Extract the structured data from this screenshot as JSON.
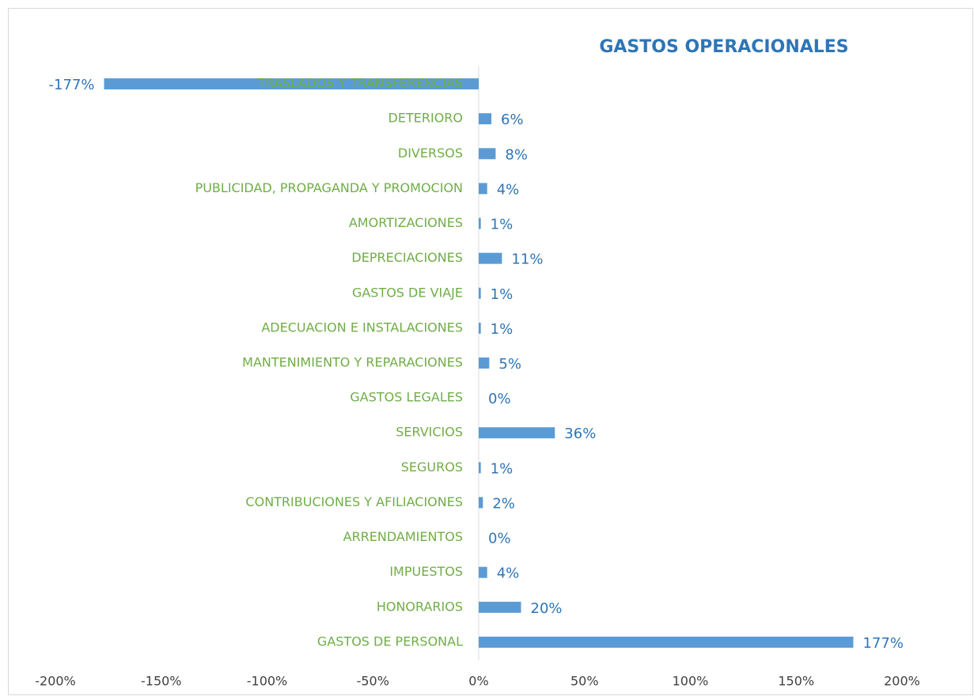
{
  "chart_data": {
    "type": "barh",
    "title": "GASTOS OPERACIONALES",
    "categories": [
      "TRASLADOS Y TRANSFERENCIAS",
      "DETERIORO",
      "DIVERSOS",
      "PUBLICIDAD, PROPAGANDA Y PROMOCION",
      "AMORTIZACIONES",
      "DEPRECIACIONES",
      "GASTOS DE VIAJE",
      "ADECUACION E INSTALACIONES",
      "MANTENIMIENTO Y REPARACIONES",
      "GASTOS LEGALES",
      "SERVICIOS",
      "SEGUROS",
      "CONTRIBUCIONES Y AFILIACIONES",
      "ARRENDAMIENTOS",
      "IMPUESTOS",
      "HONORARIOS",
      "GASTOS DE PERSONAL"
    ],
    "values": [
      -177,
      6,
      8,
      4,
      1,
      11,
      1,
      1,
      5,
      0,
      36,
      1,
      2,
      0,
      4,
      20,
      177
    ],
    "value_labels": [
      "-177%",
      "6%",
      "8%",
      "4%",
      "1%",
      "11%",
      "1%",
      "1%",
      "5%",
      "0%",
      "36%",
      "1%",
      "2%",
      "0%",
      "4%",
      "20%",
      "177%"
    ],
    "color": "#5b9bd5",
    "xlim": [
      -200,
      200
    ],
    "xticks": [
      {
        "value": -200,
        "label": "-200%"
      },
      {
        "value": -150,
        "label": "-150%"
      },
      {
        "value": -100,
        "label": "-100%"
      },
      {
        "value": -50,
        "label": "-50%"
      },
      {
        "value": 0,
        "label": "0%"
      },
      {
        "value": 50,
        "label": "50%"
      },
      {
        "value": 100,
        "label": "100%"
      },
      {
        "value": 150,
        "label": "150%"
      },
      {
        "value": 200,
        "label": "200%"
      }
    ],
    "grid": false
  }
}
